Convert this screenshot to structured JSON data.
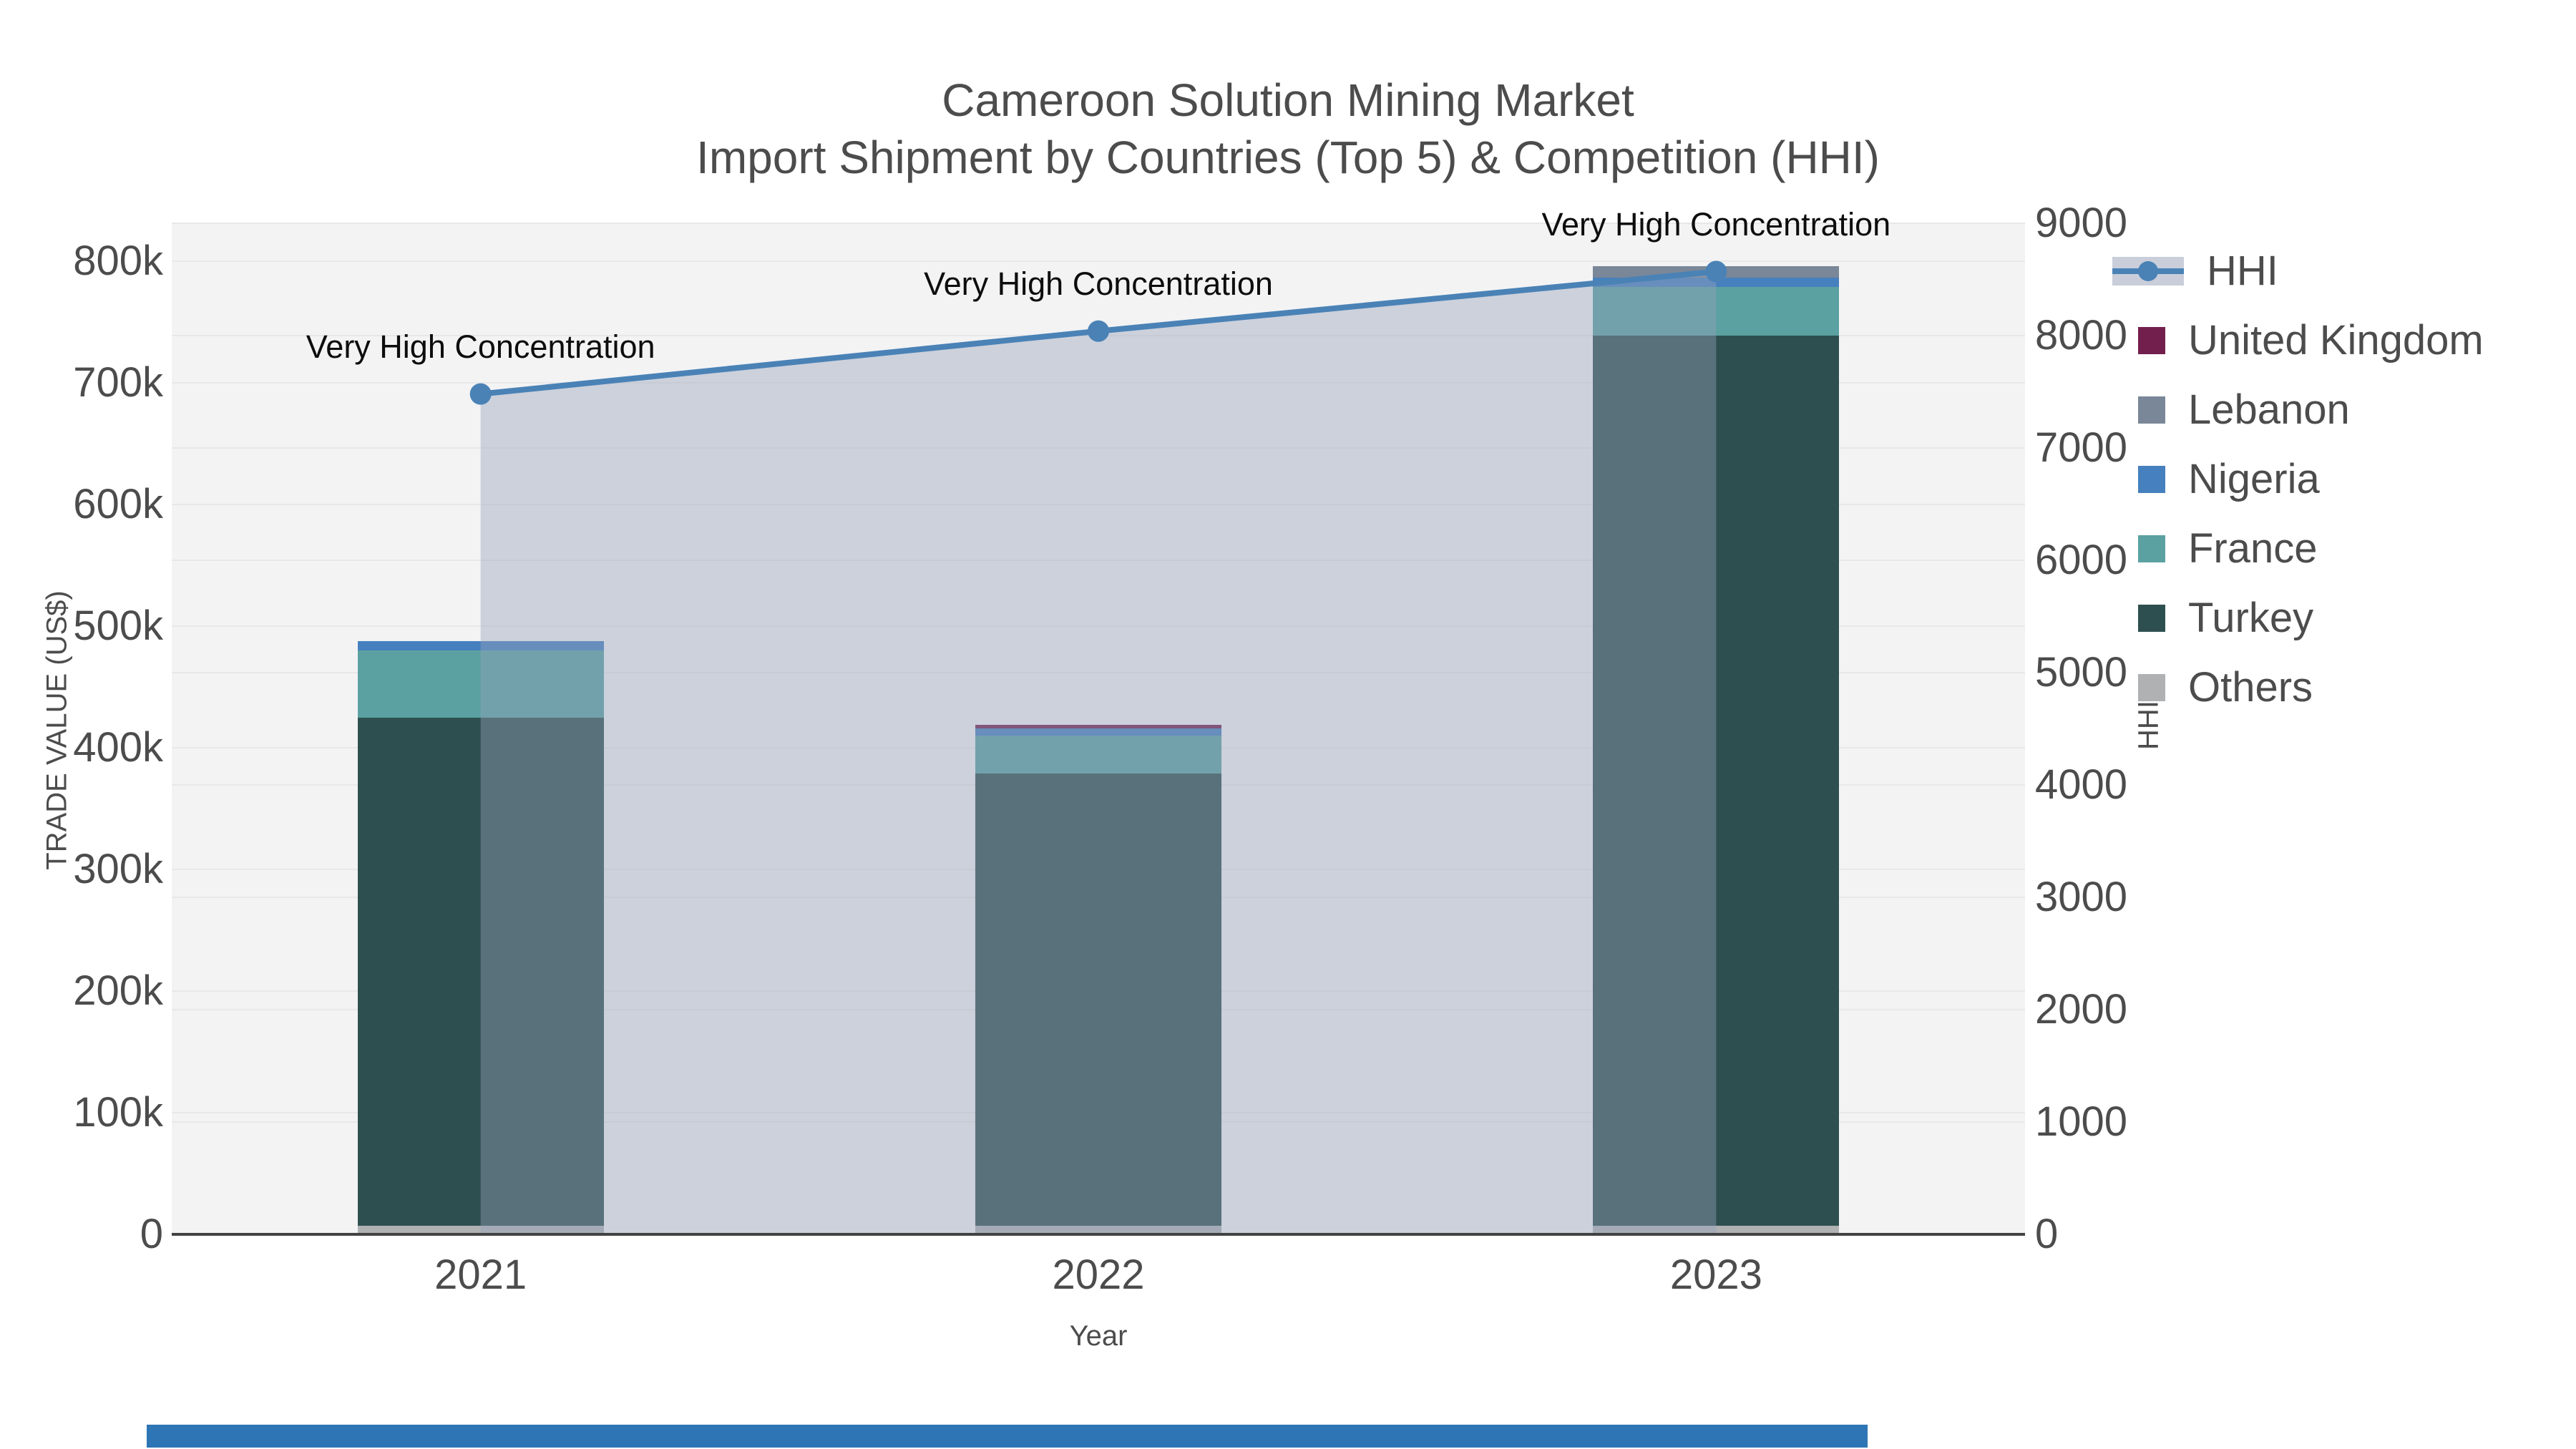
{
  "page": {
    "title_line1": "Cameroon Solution Mining Market",
    "title_line2": "Import Shipment by Countries (Top 5) & Competition (HHI)"
  },
  "axes": {
    "left": {
      "title": "TRADE VALUE (US$)",
      "ticks": [
        "0",
        "100k",
        "200k",
        "300k",
        "400k",
        "500k",
        "600k",
        "700k",
        "800k"
      ],
      "tick_values": [
        0,
        100000,
        200000,
        300000,
        400000,
        500000,
        600000,
        700000,
        800000
      ]
    },
    "right": {
      "title": "HHI",
      "ticks": [
        "0",
        "1000",
        "2000",
        "3000",
        "4000",
        "5000",
        "6000",
        "7000",
        "8000",
        "9000"
      ],
      "tick_values": [
        0,
        1000,
        2000,
        3000,
        4000,
        5000,
        6000,
        7000,
        8000,
        9000
      ]
    },
    "x": {
      "title": "Year",
      "ticks": [
        "2021",
        "2022",
        "2023"
      ]
    }
  },
  "legend": [
    {
      "label": "HHI",
      "swatch": "line",
      "color": "#4a82b6"
    },
    {
      "label": "United Kingdom",
      "swatch": "square",
      "color": "#731f4d"
    },
    {
      "label": "Lebanon",
      "swatch": "square",
      "color": "#7a8798"
    },
    {
      "label": "Nigeria",
      "swatch": "square",
      "color": "#4680be"
    },
    {
      "label": "France",
      "swatch": "square",
      "color": "#5ba1a1"
    },
    {
      "label": "Turkey",
      "swatch": "square",
      "color": "#2e4f4f"
    },
    {
      "label": "Others",
      "swatch": "square",
      "color": "#afb1b3"
    }
  ],
  "chart_data": {
    "type": "bar+line",
    "title": "Cameroon Solution Mining Market — Import Shipment by Countries (Top 5) & Competition (HHI)",
    "categories": [
      "2021",
      "2022",
      "2023"
    ],
    "stack_order_bottom_to_top": [
      "Others",
      "Turkey",
      "France",
      "Nigeria",
      "Lebanon",
      "United Kingdom"
    ],
    "series": [
      {
        "name": "United Kingdom",
        "color": "#731f4d",
        "values": [
          0,
          3000,
          0
        ]
      },
      {
        "name": "Lebanon",
        "color": "#7a8798",
        "values": [
          0,
          0,
          9500
        ]
      },
      {
        "name": "Nigeria",
        "color": "#4680be",
        "values": [
          7500,
          6000,
          7500
        ]
      },
      {
        "name": "France",
        "color": "#5ba1a1",
        "values": [
          55000,
          31000,
          40000
        ]
      },
      {
        "name": "Turkey",
        "color": "#2e4f4f",
        "values": [
          418000,
          372000,
          732000
        ]
      },
      {
        "name": "Others",
        "color": "#afb1b3",
        "values": [
          7000,
          7000,
          7000
        ]
      }
    ],
    "bar_totals": [
      487500,
      419000,
      796000
    ],
    "hhi": {
      "name": "HHI",
      "values": [
        7480,
        8040,
        8570
      ],
      "line_color": "#4a82b6",
      "area_fill": "rgba(151,163,186,0.42)"
    },
    "annotations": [
      {
        "text": "Very High Concentration",
        "category": "2021"
      },
      {
        "text": "Very High Concentration",
        "category": "2022"
      },
      {
        "text": "Very High Concentration",
        "category": "2023"
      }
    ],
    "xlabel": "Year",
    "ylabel_left": "TRADE VALUE (US$)",
    "ylabel_right": "HHI",
    "ylim_left": [
      0,
      831000
    ],
    "ylim_right": [
      0,
      9000
    ],
    "grid": true,
    "legend_position": "right"
  },
  "colors": {
    "plot_background": "#f3f3f4",
    "gridline": "#e8e8ea",
    "axis_line": "#424242",
    "text": "#4c4c4c",
    "annotation_text": "#0d0d0d",
    "bottom_strip": "#2e75b5"
  }
}
